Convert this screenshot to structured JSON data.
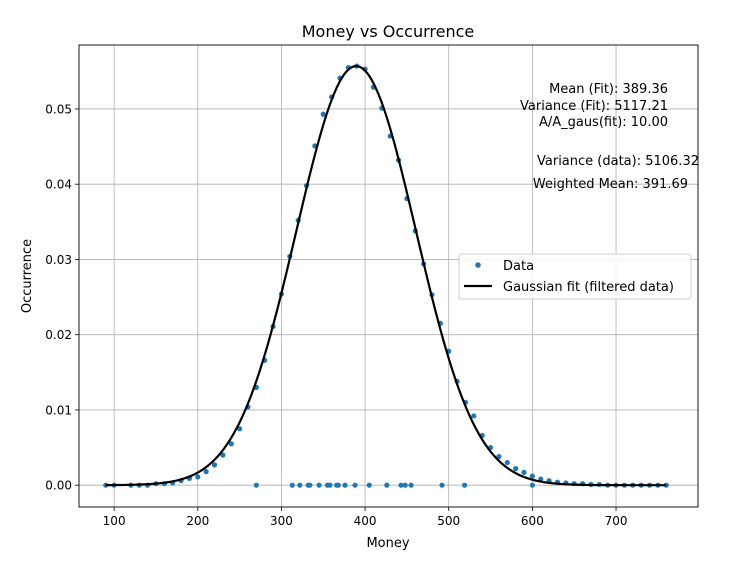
{
  "chart_data": {
    "type": "scatter",
    "title": "Money vs Occurrence",
    "xlabel": "Money",
    "ylabel": "Occurrence",
    "xlim": [
      58,
      798
    ],
    "ylim": [
      -0.0029,
      0.0585
    ],
    "xticks": [
      100,
      200,
      300,
      400,
      500,
      600,
      700
    ],
    "yticks": [
      0.0,
      0.01,
      0.02,
      0.03,
      0.04,
      0.05
    ],
    "ytick_labels": [
      "0.00",
      "0.01",
      "0.02",
      "0.03",
      "0.04",
      "0.05"
    ],
    "grid": true,
    "legend": {
      "placement": "center-right",
      "entries": [
        {
          "label": "Data",
          "kind": "marker",
          "color": "#1f77b4"
        },
        {
          "label": "Gaussian fit (filtered data)",
          "kind": "line",
          "color": "#000000"
        }
      ]
    },
    "annotations": [
      "Mean (Fit): 389.36",
      "Variance (Fit): 5117.21",
      "A/A_gaus(fit): 10.00",
      "Variance (data): 5106.32",
      "Weighted Mean: 391.69"
    ],
    "series": [
      {
        "name": "Data",
        "kind": "scatter",
        "color": "#1f77b4",
        "x": [
          90,
          100,
          120,
          130,
          140,
          150,
          160,
          170,
          180,
          190,
          200,
          210,
          220,
          230,
          240,
          250,
          260,
          270,
          280,
          290,
          300,
          310,
          320,
          330,
          340,
          350,
          360,
          370,
          380,
          390,
          400,
          410,
          420,
          430,
          440,
          450,
          460,
          470,
          480,
          490,
          500,
          510,
          520,
          530,
          540,
          550,
          560,
          570,
          580,
          590,
          600,
          610,
          620,
          630,
          640,
          650,
          660,
          670,
          680,
          690,
          700,
          710,
          720,
          730,
          740,
          750,
          760,
          270,
          313,
          322,
          332,
          334,
          345,
          355,
          358,
          366,
          368,
          376,
          388,
          405,
          426,
          443,
          448,
          455,
          492,
          519,
          600
        ],
        "y": [
          0.0,
          0.0,
          0.0,
          0.0,
          0.0,
          0.0002,
          0.0002,
          0.0003,
          0.0006,
          0.0009,
          0.0011,
          0.0018,
          0.0027,
          0.004,
          0.0055,
          0.0075,
          0.0104,
          0.013,
          0.0166,
          0.0211,
          0.0254,
          0.0304,
          0.0352,
          0.0398,
          0.0451,
          0.0493,
          0.0516,
          0.0541,
          0.0555,
          0.0557,
          0.0553,
          0.0529,
          0.0501,
          0.0464,
          0.0432,
          0.0381,
          0.0338,
          0.0294,
          0.0253,
          0.0215,
          0.0178,
          0.0138,
          0.011,
          0.0092,
          0.0066,
          0.005,
          0.0038,
          0.003,
          0.0022,
          0.0017,
          0.0012,
          0.0008,
          0.0006,
          0.0004,
          0.0003,
          0.0002,
          0.0002,
          0.0001,
          0.0001,
          0.0,
          0.0,
          0.0,
          0.0,
          0.0,
          0.0,
          0.0,
          0.0,
          0.0,
          0.0,
          0.0,
          0.0,
          0.0,
          0.0,
          0.0,
          0.0,
          0.0,
          0.0,
          0.0,
          0.0,
          0.0,
          0.0,
          0.0,
          0.0,
          0.0,
          0.0,
          0.0,
          0.0
        ]
      },
      {
        "name": "Gaussian fit (filtered data)",
        "kind": "line",
        "color": "#000000",
        "function": "gaussian",
        "mean": 389.36,
        "variance": 5117.21,
        "x_range": [
          90,
          760
        ]
      }
    ]
  }
}
